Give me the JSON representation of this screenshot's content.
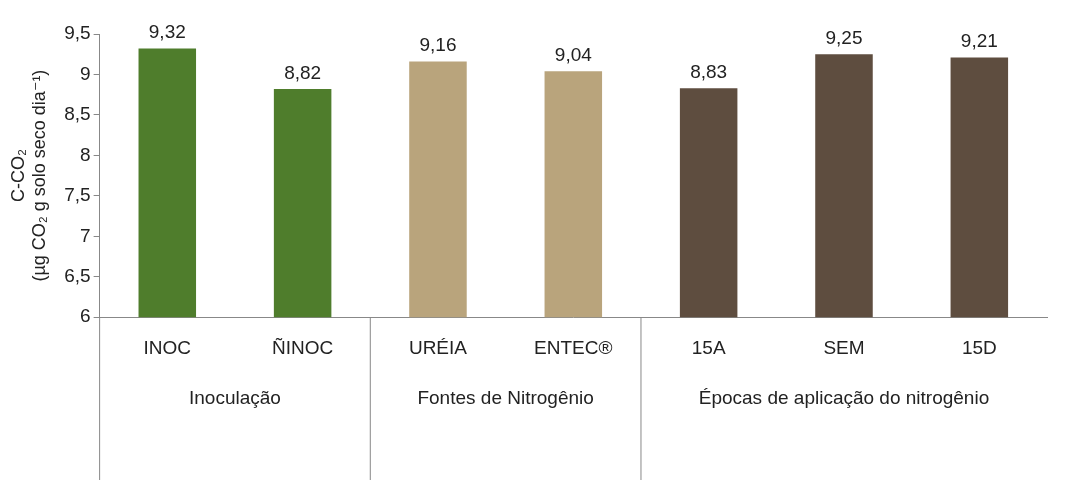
{
  "chart_data": {
    "type": "bar",
    "y_label": "C-CO₂ (µg CO₂ g solo seco dia⁻¹)",
    "categories": [
      "INOC",
      "ÑINOC",
      "URÉIA",
      "ENTEC®",
      "15A",
      "SEM",
      "15D"
    ],
    "values": [
      9.32,
      8.82,
      9.16,
      9.04,
      8.83,
      9.25,
      9.21
    ],
    "value_labels": [
      "9,32",
      "8,82",
      "9,16",
      "9,04",
      "8,83",
      "9,25",
      "9,21"
    ],
    "colors": [
      "#4f7d2c",
      "#4f7d2c",
      "#b9a47c",
      "#b9a47c",
      "#5e4d3f",
      "#5e4d3f",
      "#5e4d3f"
    ],
    "groups": [
      {
        "label": "Inoculação",
        "categories": [
          "INOC",
          "ÑINOC"
        ]
      },
      {
        "label": "Fontes de Nitrogênio",
        "categories": [
          "URÉIA",
          "ENTEC®"
        ]
      },
      {
        "label": "Épocas de aplicação do nitrogênio",
        "categories": [
          "15A",
          "SEM",
          "15D"
        ]
      }
    ],
    "ylim": [
      6,
      9.5
    ],
    "yticks": [
      6,
      {
        "value": 6.5,
        "label": "6,5"
      },
      7,
      {
        "value": 7.5,
        "label": "7,5"
      },
      8,
      {
        "value": 8.5,
        "label": "8,5"
      },
      9,
      {
        "value": 9.5,
        "label": "9,5"
      }
    ],
    "grid": false,
    "data_labels": true
  }
}
